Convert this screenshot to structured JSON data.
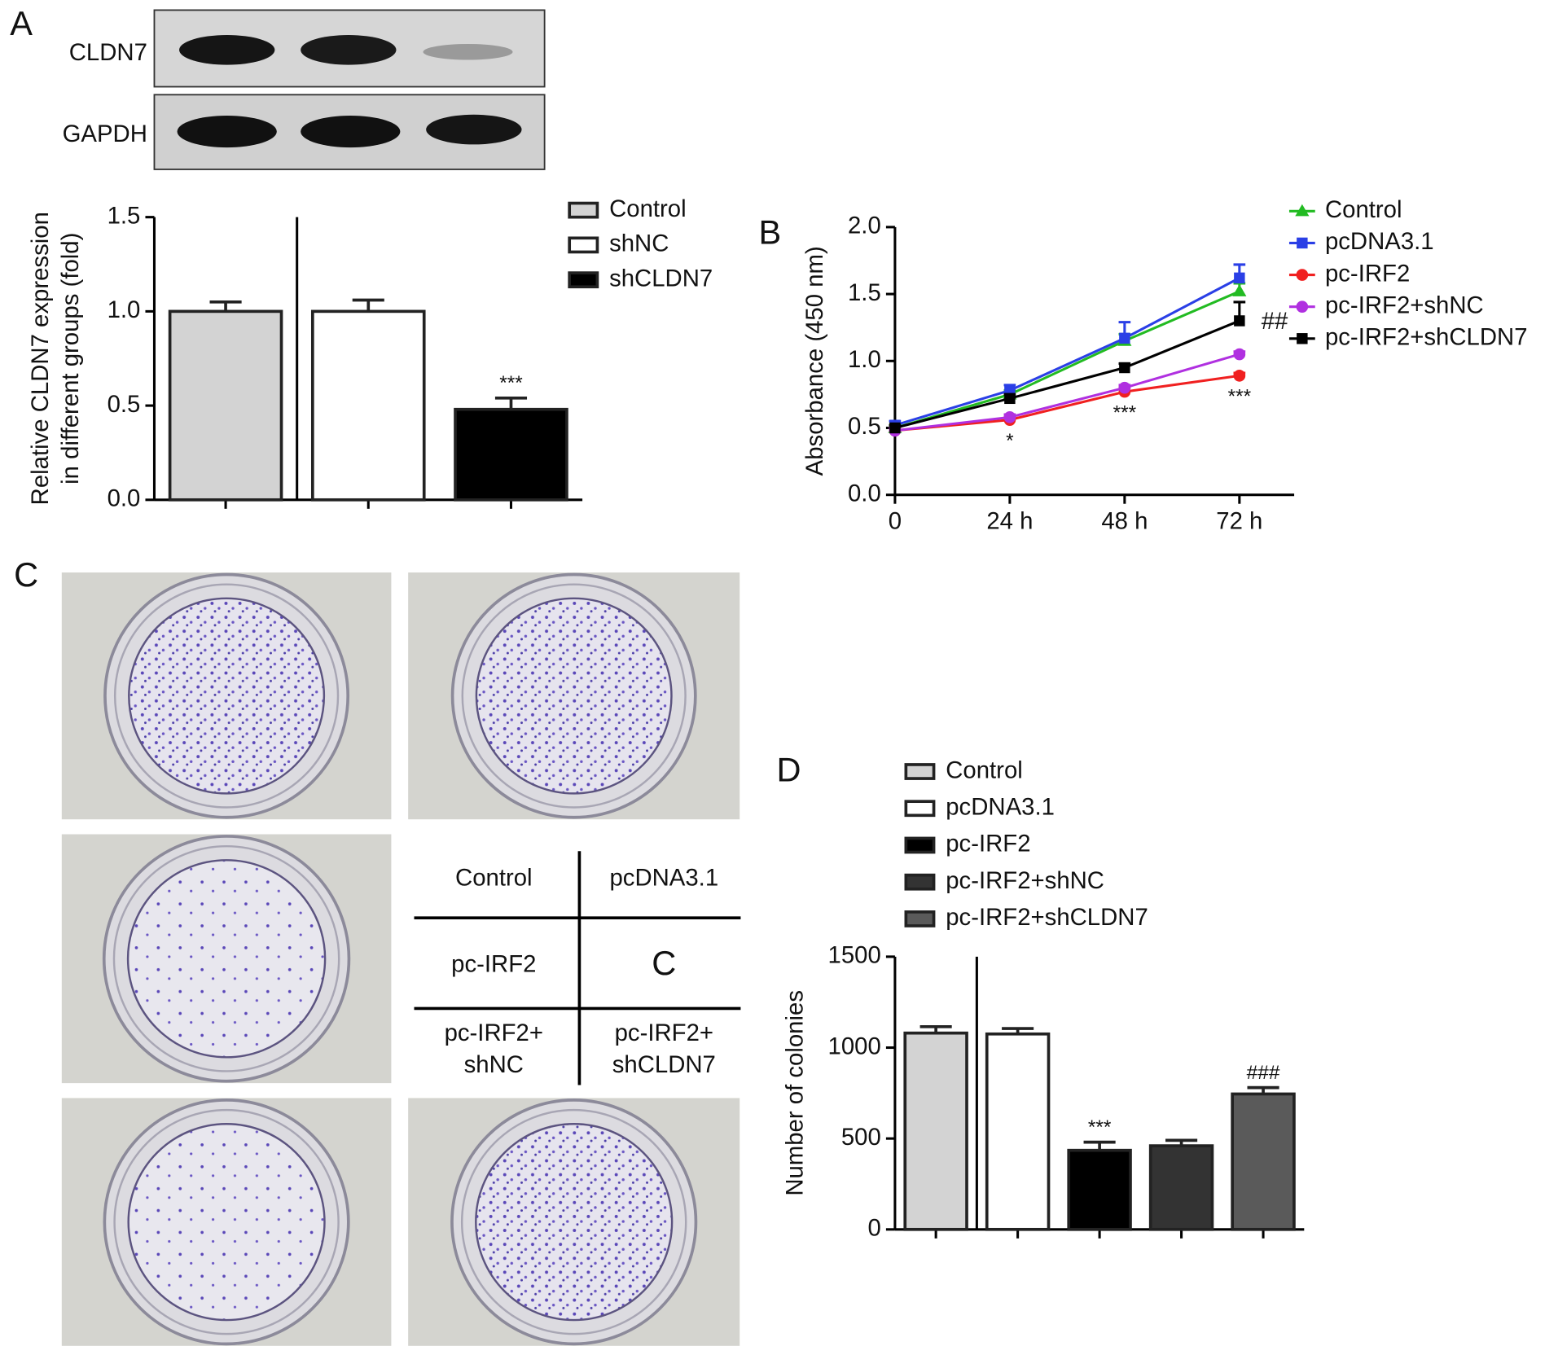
{
  "panels": [
    "A",
    "B",
    "C",
    "D"
  ],
  "blot": {
    "labels": [
      "CLDN7",
      "GAPDH"
    ]
  },
  "colony_grid": {
    "cells": [
      [
        "Control"
      ],
      [
        "pcDNA3.1"
      ],
      [
        "pc-IRF2"
      ],
      [
        "C"
      ],
      [
        "pc-IRF2+",
        "shNC"
      ],
      [
        "pc-IRF2+",
        "shCLDN7"
      ]
    ]
  },
  "chart_data": [
    {
      "type": "bar",
      "ylabel": [
        "Relative CLDN7 expression",
        "in different groups (fold)"
      ],
      "categories": [
        null,
        null,
        null
      ],
      "series": [
        {
          "name": "Control",
          "color": "#d3d3d3"
        },
        {
          "name": "shNC",
          "color": "#ffffff"
        },
        {
          "name": "shCLDN7",
          "color": "#000000"
        }
      ],
      "values": [
        1.0,
        1.0,
        0.48
      ],
      "errors": [
        0.05,
        0.06,
        0.06
      ],
      "annotations": [
        null,
        null,
        "***"
      ],
      "ylim": [
        0,
        1.5
      ],
      "yticks": [
        {
          "value": 0,
          "label": "0.0"
        },
        0.5,
        {
          "value": 1,
          "label": "1.0"
        },
        1.5
      ]
    },
    {
      "type": "line",
      "ylabel": [
        "Absorbance (450 nm)"
      ],
      "categories": [
        "0",
        "24 h",
        "48 h",
        "72 h"
      ],
      "series": [
        {
          "name": "Control",
          "color": "#22bb22",
          "marker": "triangle",
          "values": [
            0.5,
            0.75,
            1.15,
            1.52
          ],
          "errors": [
            0.02,
            0.03,
            0.05,
            0.06
          ]
        },
        {
          "name": "pcDNA3.1",
          "color": "#2a3fe6",
          "marker": "square",
          "values": [
            0.52,
            0.78,
            1.17,
            1.62
          ],
          "errors": [
            0.03,
            0.04,
            0.12,
            0.1
          ]
        },
        {
          "name": "pc-IRF2",
          "color": "#f02020",
          "marker": "circle",
          "values": [
            0.48,
            0.56,
            0.77,
            0.89
          ],
          "errors": [
            0.02,
            0.02,
            0.03,
            0.02
          ]
        },
        {
          "name": "pc-IRF2+shNC",
          "color": "#b030e0",
          "marker": "circle",
          "values": [
            0.48,
            0.58,
            0.8,
            1.05
          ],
          "errors": [
            0.02,
            0.02,
            0.02,
            0.02
          ]
        },
        {
          "name": "pc-IRF2+shCLDN7",
          "color": "#000000",
          "marker": "square",
          "values": [
            0.5,
            0.72,
            0.95,
            1.3
          ],
          "errors": [
            0.02,
            0.03,
            0.03,
            0.14
          ],
          "annotations": [
            null,
            null,
            null,
            "##"
          ]
        }
      ],
      "annotations": [
        null,
        "*",
        "***",
        "***"
      ],
      "ylim": [
        0,
        2
      ],
      "yticks": [
        {
          "value": 0,
          "label": "0.0"
        },
        0.5,
        {
          "value": 1,
          "label": "1.0"
        },
        1.5,
        {
          "value": 2,
          "label": "2.0"
        }
      ]
    },
    {
      "type": "bar",
      "ylabel": [
        "Number of colonies"
      ],
      "categories": [
        null,
        null,
        null,
        null,
        null
      ],
      "series": [
        {
          "name": "Control",
          "color": "#d3d3d3"
        },
        {
          "name": "pcDNA3.1",
          "color": "#ffffff"
        },
        {
          "name": "pc-IRF2",
          "color": "#000000"
        },
        {
          "name": "pc-IRF2+shNC",
          "color": "#333333"
        },
        {
          "name": "pc-IRF2+shCLDN7",
          "color": "#5a5a5a"
        }
      ],
      "values": [
        1080,
        1075,
        435,
        460,
        745
      ],
      "errors": [
        35,
        30,
        45,
        30,
        35
      ],
      "annotations": [
        null,
        null,
        "***",
        null,
        "###"
      ],
      "ylim": [
        0,
        1500
      ],
      "yticks": [
        0,
        500,
        1000,
        1500
      ]
    }
  ]
}
